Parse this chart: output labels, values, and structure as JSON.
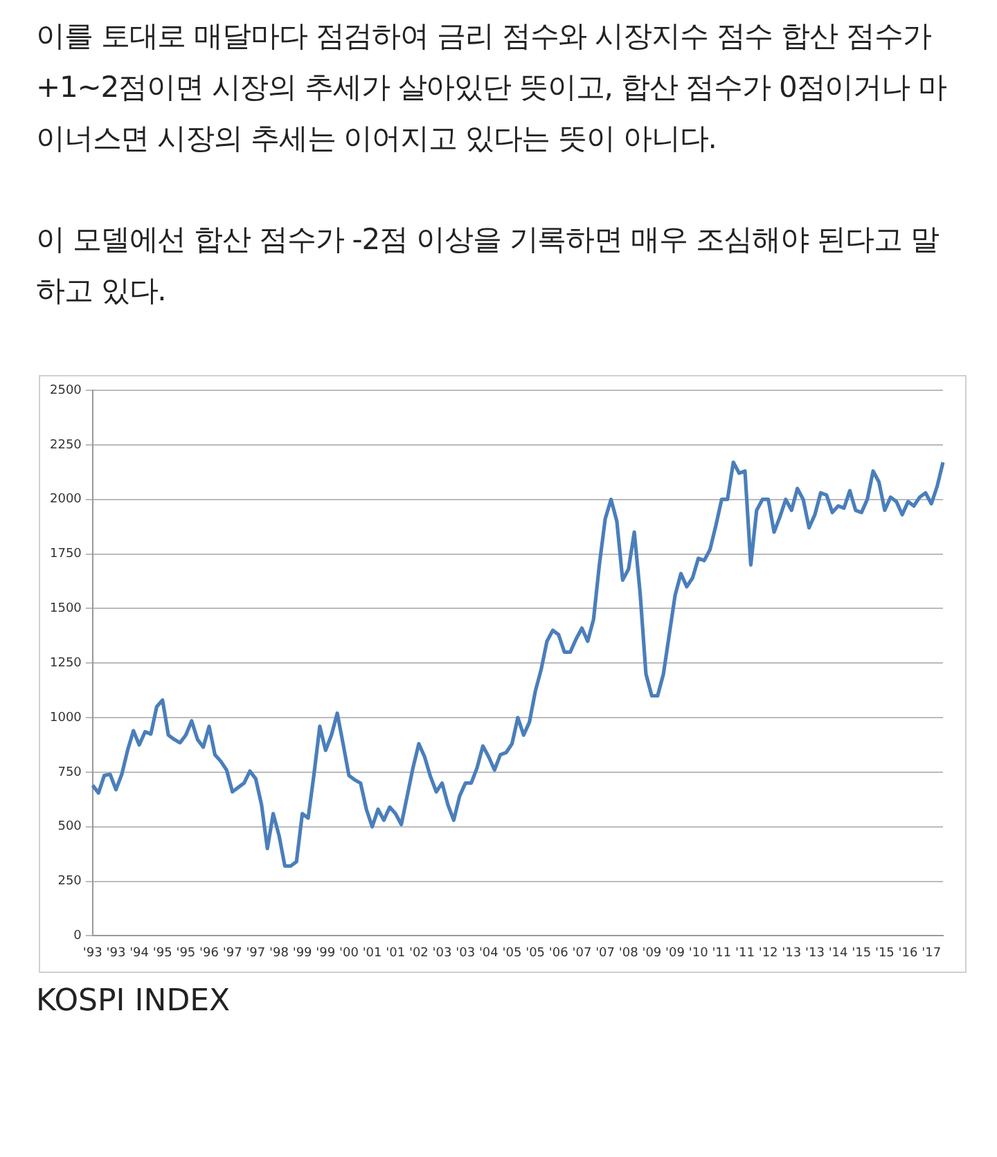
{
  "chart_data": {
    "type": "line",
    "annotations": [
      "이를 토대로 매달마다 점검하여 금리 점수와 시장지수 점수 합산 점수가 +1~2점이면 시장의 추세가 살아있단 뜻이고, 합산 점수가 0점이거나 마이너스면 시장의 추세는 이어지고 있다는 뜻이 아니다.",
      "이 모델에선 합산 점수가 -2점 이상을 기록하면 매우 조심해야 된다고 말하고 있다.",
      "KOSPI INDEX"
    ],
    "categories": [
      "'93",
      null,
      null,
      null,
      "'93",
      null,
      null,
      null,
      "'94",
      null,
      null,
      null,
      "'95",
      null,
      null,
      null,
      "'95",
      null,
      null,
      null,
      "'96",
      null,
      null,
      null,
      "'97",
      null,
      null,
      null,
      "'97",
      null,
      null,
      null,
      "'98",
      null,
      null,
      null,
      "'99",
      null,
      null,
      null,
      "'99",
      null,
      null,
      null,
      "'00",
      null,
      null,
      null,
      "'01",
      null,
      null,
      null,
      "'01",
      null,
      null,
      null,
      "'02",
      null,
      null,
      null,
      "'03",
      null,
      null,
      null,
      "'03",
      null,
      null,
      null,
      "'04",
      null,
      null,
      null,
      "'05",
      null,
      null,
      null,
      "'05",
      null,
      null,
      null,
      "'06",
      null,
      null,
      null,
      "'07",
      null,
      null,
      null,
      "'07",
      null,
      null,
      null,
      "'08",
      null,
      null,
      null,
      "'09",
      null,
      null,
      null,
      "'09",
      null,
      null,
      null,
      "'10",
      null,
      null,
      null,
      "'11",
      null,
      null,
      null,
      "'11",
      null,
      null,
      null,
      "'12",
      null,
      null,
      null,
      "'13",
      null,
      null,
      null,
      "'13",
      null,
      null,
      null,
      "'14",
      null,
      null,
      null,
      "'15",
      null,
      null,
      null,
      "'15",
      null,
      null,
      null,
      "'16",
      null,
      null,
      null,
      "'17",
      null,
      null
    ],
    "series": [
      {
        "color": "#4a7ebb",
        "values": [
          690,
          655,
          735,
          740,
          670,
          740,
          850,
          940,
          875,
          935,
          925,
          1050,
          1080,
          920,
          900,
          885,
          920,
          985,
          900,
          865,
          960,
          830,
          800,
          760,
          660,
          680,
          700,
          755,
          720,
          600,
          400,
          560,
          460,
          320,
          320,
          340,
          560,
          540,
          740,
          960,
          850,
          920,
          1020,
          880,
          735,
          715,
          700,
          580,
          500,
          580,
          530,
          590,
          560,
          510,
          640,
          770,
          880,
          820,
          730,
          660,
          700,
          600,
          530,
          640,
          700,
          700,
          770,
          870,
          820,
          760,
          830,
          840,
          880,
          1000,
          920,
          980,
          1120,
          1220,
          1350,
          1400,
          1380,
          1300,
          1300,
          1360,
          1410,
          1350,
          1450,
          1700,
          1910,
          2000,
          1900,
          1630,
          1680,
          1850,
          1570,
          1200,
          1100,
          1100,
          1200,
          1380,
          1560,
          1660,
          1600,
          1640,
          1730,
          1720,
          1770,
          1880,
          2000,
          2000,
          2170,
          2120,
          2130,
          1700,
          1950,
          2000,
          2000,
          1850,
          1920,
          2000,
          1950,
          2050,
          2000,
          1870,
          1930,
          2030,
          2020,
          1940,
          1970,
          1960,
          2040,
          1950,
          1940,
          2000,
          2130,
          2080,
          1950,
          2010,
          1990,
          1930,
          1990,
          1970,
          2010,
          2030,
          1980,
          2060,
          2170
        ]
      }
    ],
    "ylim": [
      0,
      2500
    ],
    "yticks": [
      0,
      250,
      500,
      750,
      1000,
      1250,
      1500,
      1750,
      2000,
      2250,
      2500
    ],
    "grid": "y",
    "legend": false,
    "marker": "none",
    "line_style": "solid"
  }
}
